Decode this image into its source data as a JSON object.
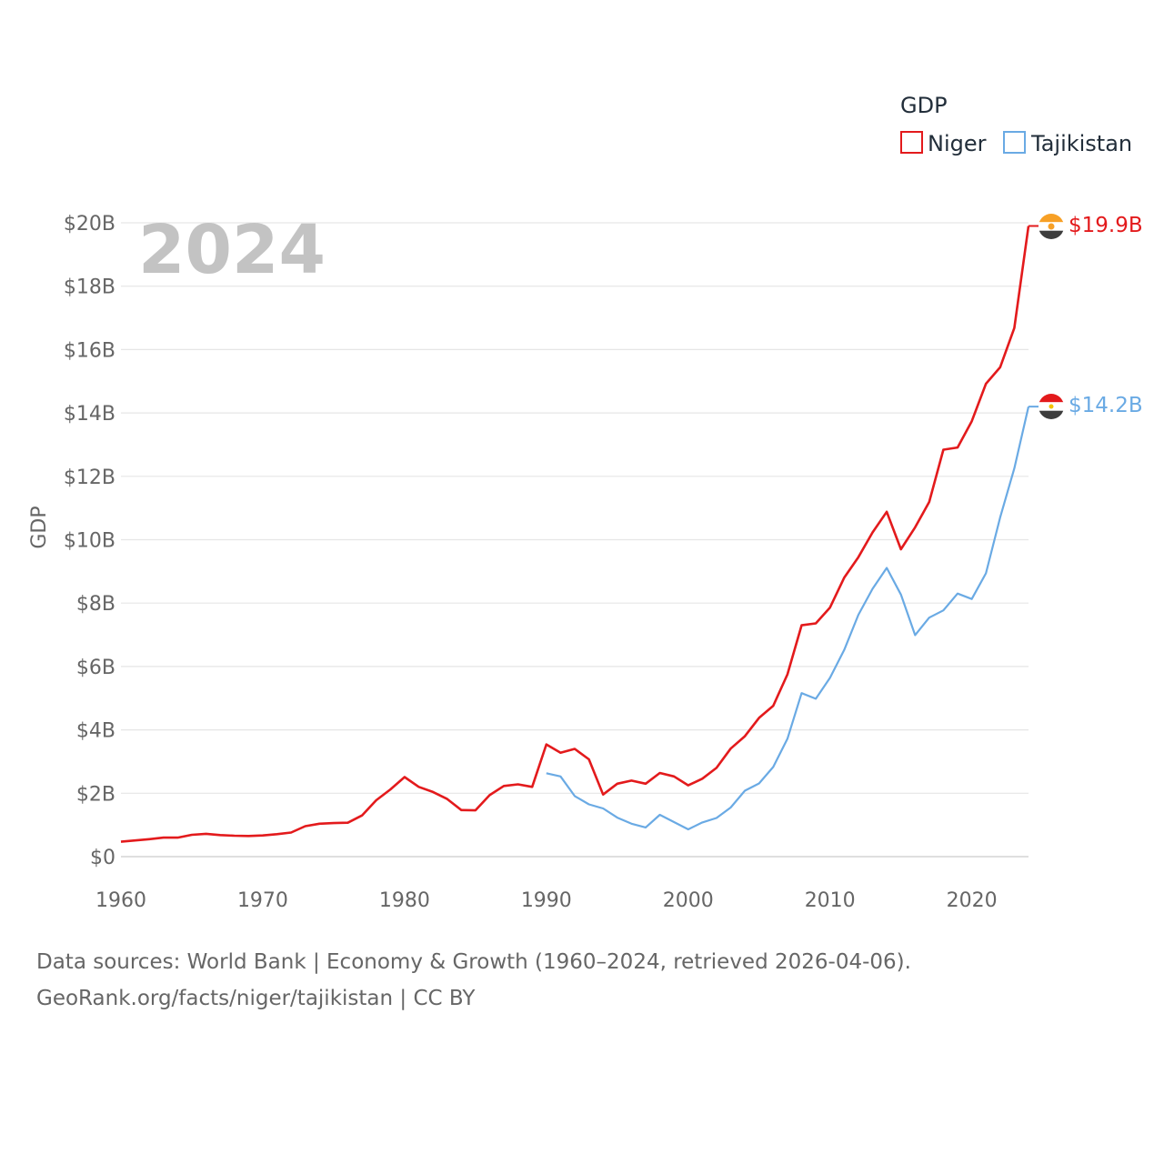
{
  "chart_data": {
    "type": "line",
    "year_label": "2024",
    "ylabel": "GDP",
    "legend_title": "GDP",
    "ylim": [
      0,
      20
    ],
    "yticks": [
      {
        "v": 0,
        "label": "$0"
      },
      {
        "v": 2,
        "label": "$2B"
      },
      {
        "v": 4,
        "label": "$4B"
      },
      {
        "v": 6,
        "label": "$6B"
      },
      {
        "v": 8,
        "label": "$8B"
      },
      {
        "v": 10,
        "label": "$10B"
      },
      {
        "v": 12,
        "label": "$12B"
      },
      {
        "v": 14,
        "label": "$14B"
      },
      {
        "v": 16,
        "label": "$16B"
      },
      {
        "v": 18,
        "label": "$18B"
      },
      {
        "v": 20,
        "label": "$20B"
      }
    ],
    "xlim": [
      1960,
      2024
    ],
    "xticks": [
      {
        "v": 1960,
        "label": "1960"
      },
      {
        "v": 1970,
        "label": "1970"
      },
      {
        "v": 1980,
        "label": "1980"
      },
      {
        "v": 1990,
        "label": "1990"
      },
      {
        "v": 2000,
        "label": "2000"
      },
      {
        "v": 2010,
        "label": "2010"
      },
      {
        "v": 2020,
        "label": "2020"
      }
    ],
    "series": [
      {
        "name": "Niger",
        "color": "#e31a1c",
        "end_label": "$19.9B",
        "flag": "niger-flag-icon",
        "start_year": 1960,
        "values": [
          0.47,
          0.51,
          0.55,
          0.6,
          0.6,
          0.69,
          0.72,
          0.68,
          0.66,
          0.65,
          0.67,
          0.71,
          0.76,
          0.96,
          1.04,
          1.06,
          1.07,
          1.3,
          1.78,
          2.12,
          2.51,
          2.2,
          2.04,
          1.82,
          1.47,
          1.46,
          1.94,
          2.23,
          2.28,
          2.2,
          3.54,
          3.28,
          3.4,
          3.07,
          1.96,
          2.3,
          2.4,
          2.3,
          2.64,
          2.53,
          2.25,
          2.46,
          2.8,
          3.41,
          3.8,
          4.38,
          4.76,
          5.75,
          7.3,
          7.36,
          7.86,
          8.8,
          9.45,
          10.23,
          10.88,
          9.7,
          10.39,
          11.19,
          12.84,
          12.91,
          13.74,
          14.92,
          15.44,
          16.68,
          19.9
        ]
      },
      {
        "name": "Tajikistan",
        "color": "#6aaae4",
        "end_label": "$14.2B",
        "flag": "tajikistan-flag-icon",
        "start_year": 1990,
        "values": [
          2.63,
          2.53,
          1.91,
          1.65,
          1.52,
          1.23,
          1.04,
          0.92,
          1.32,
          1.09,
          0.86,
          1.08,
          1.22,
          1.55,
          2.08,
          2.31,
          2.83,
          3.72,
          5.16,
          4.98,
          5.64,
          6.52,
          7.63,
          8.45,
          9.11,
          8.27,
          6.99,
          7.54,
          7.77,
          8.3,
          8.13,
          8.94,
          10.7,
          12.25,
          14.2
        ]
      }
    ]
  },
  "footer": {
    "source_line": "Data sources: World Bank | Economy & Growth (1960–2024, retrieved 2026-04-06).",
    "url_line": "GeoRank.org/facts/niger/tajikistan | CC BY"
  }
}
